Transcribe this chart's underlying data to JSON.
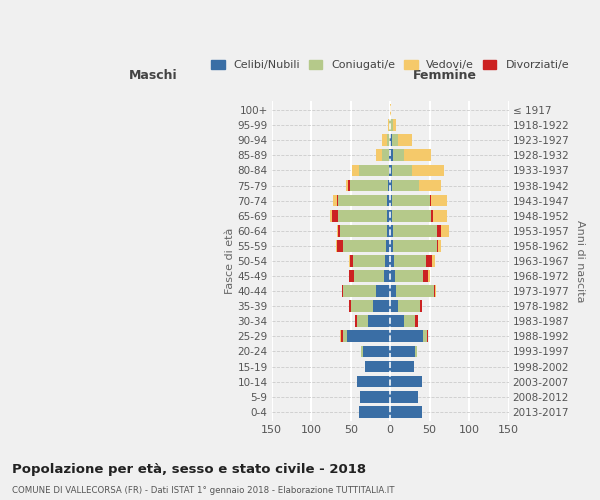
{
  "age_groups": [
    "0-4",
    "5-9",
    "10-14",
    "15-19",
    "20-24",
    "25-29",
    "30-34",
    "35-39",
    "40-44",
    "45-49",
    "50-54",
    "55-59",
    "60-64",
    "65-69",
    "70-74",
    "75-79",
    "80-84",
    "85-89",
    "90-94",
    "95-99",
    "100+"
  ],
  "birth_years": [
    "2013-2017",
    "2008-2012",
    "2003-2007",
    "1998-2002",
    "1993-1997",
    "1988-1992",
    "1983-1987",
    "1978-1982",
    "1973-1977",
    "1968-1972",
    "1963-1967",
    "1958-1962",
    "1953-1957",
    "1948-1952",
    "1943-1947",
    "1938-1942",
    "1933-1937",
    "1928-1932",
    "1923-1927",
    "1918-1922",
    "≤ 1917"
  ],
  "maschi": {
    "celibi": [
      40,
      38,
      42,
      32,
      35,
      55,
      28,
      22,
      18,
      8,
      7,
      5,
      4,
      4,
      4,
      3,
      2,
      2,
      0,
      0,
      0
    ],
    "coniugati": [
      0,
      0,
      0,
      0,
      2,
      5,
      14,
      28,
      42,
      38,
      40,
      55,
      60,
      62,
      62,
      48,
      38,
      8,
      4,
      1,
      0
    ],
    "vedovi": [
      0,
      0,
      0,
      0,
      0,
      2,
      1,
      0,
      0,
      0,
      1,
      1,
      2,
      2,
      4,
      3,
      8,
      8,
      6,
      2,
      0
    ],
    "divorziati": [
      0,
      0,
      0,
      0,
      0,
      2,
      2,
      2,
      1,
      6,
      4,
      8,
      2,
      8,
      2,
      2,
      0,
      0,
      0,
      0,
      0
    ]
  },
  "femmine": {
    "nubili": [
      40,
      35,
      40,
      30,
      32,
      42,
      18,
      10,
      8,
      6,
      5,
      4,
      4,
      2,
      2,
      2,
      2,
      3,
      2,
      0,
      0
    ],
    "coniugate": [
      0,
      0,
      0,
      0,
      2,
      5,
      14,
      28,
      48,
      36,
      40,
      55,
      55,
      50,
      48,
      35,
      26,
      14,
      8,
      3,
      0
    ],
    "vedove": [
      0,
      0,
      0,
      0,
      0,
      0,
      0,
      0,
      1,
      2,
      4,
      4,
      10,
      18,
      20,
      28,
      40,
      35,
      18,
      5,
      1
    ],
    "divorziate": [
      0,
      0,
      0,
      0,
      0,
      1,
      3,
      2,
      1,
      6,
      8,
      2,
      6,
      2,
      2,
      0,
      0,
      0,
      0,
      0,
      0
    ]
  },
  "colors": {
    "celibi": "#3a6ea5",
    "coniugati": "#b5c98a",
    "vedovi": "#f5c96a",
    "divorziati": "#cc2222"
  },
  "title": "Popolazione per età, sesso e stato civile - 2018",
  "subtitle": "COMUNE DI VALLECORSA (FR) - Dati ISTAT 1° gennaio 2018 - Elaborazione TUTTITALIA.IT",
  "xlabel_left": "Maschi",
  "xlabel_right": "Femmine",
  "ylabel_left": "Fasce di età",
  "ylabel_right": "Anni di nascita",
  "xlim": 150,
  "bg_color": "#f0f0f0",
  "legend_labels": [
    "Celibi/Nubili",
    "Coniugati/e",
    "Vedovi/e",
    "Divorziati/e"
  ]
}
